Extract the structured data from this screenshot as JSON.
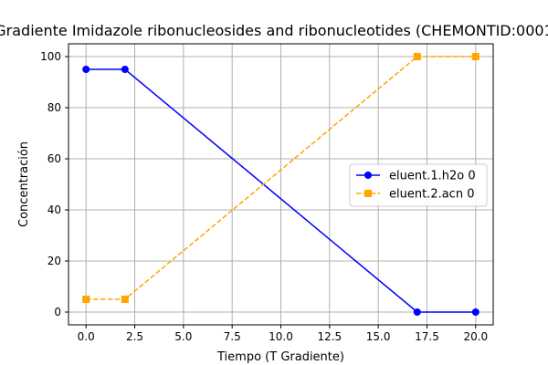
{
  "chart_data": {
    "type": "line",
    "title": "Gradiente Imidazole ribonucleosides and ribonucleotides (CHEMONTID:0001",
    "xlabel": "Tiempo (T Gradiente)",
    "ylabel": "Concentración",
    "xlim": [
      -0.9,
      20.9
    ],
    "ylim": [
      -5,
      105
    ],
    "xticks": [
      0.0,
      2.5,
      5.0,
      7.5,
      10.0,
      12.5,
      15.0,
      17.5,
      20.0
    ],
    "xtick_labels": [
      "0.0",
      "2.5",
      "5.0",
      "7.5",
      "10.0",
      "12.5",
      "15.0",
      "17.5",
      "20.0"
    ],
    "yticks": [
      0,
      20,
      40,
      60,
      80,
      100
    ],
    "ytick_labels": [
      "0",
      "20",
      "40",
      "60",
      "80",
      "100"
    ],
    "grid": true,
    "legend_position": "center-right",
    "series": [
      {
        "name": "eluent.1.h2o 0",
        "x": [
          0,
          2,
          17,
          20
        ],
        "y": [
          95,
          95,
          0,
          0
        ],
        "color": "#0000ff",
        "line_style": "solid",
        "marker": "circle"
      },
      {
        "name": "eluent.2.acn 0",
        "x": [
          0,
          2,
          17,
          20
        ],
        "y": [
          5,
          5,
          100,
          100
        ],
        "color": "#ffa500",
        "line_style": "dashed",
        "marker": "square"
      }
    ]
  }
}
